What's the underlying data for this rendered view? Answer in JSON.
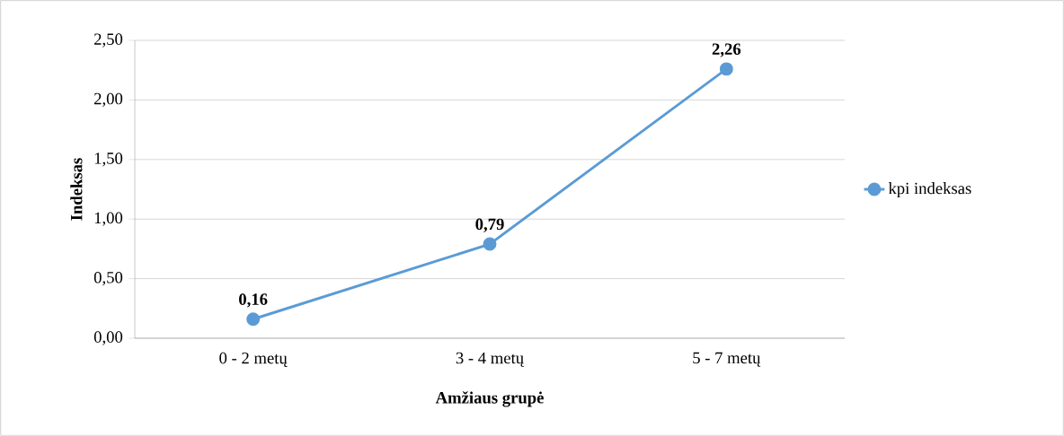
{
  "chart_data": {
    "type": "line",
    "categories": [
      "0 - 2 metų",
      "3 - 4 metų",
      "5 - 7 metų"
    ],
    "series": [
      {
        "name": "kpi indeksas",
        "color": "#5b9bd5",
        "values": [
          0.16,
          0.79,
          2.26
        ],
        "value_labels": [
          "0,16",
          "0,79",
          "2,26"
        ]
      }
    ],
    "xlabel": "Amžiaus grupė",
    "ylabel": "Indeksas",
    "ylim": [
      0,
      2.5
    ],
    "yticks": [
      {
        "value": 0,
        "label": "0,00"
      },
      {
        "value": 0.5,
        "label": "0,50"
      },
      {
        "value": 1,
        "label": "1,00"
      },
      {
        "value": 1.5,
        "label": "1,50"
      },
      {
        "value": 2,
        "label": "2,00"
      },
      {
        "value": 2.5,
        "label": "2,50"
      }
    ],
    "grid": "y",
    "legend": "right",
    "marker": "circle",
    "line_style": "solid"
  }
}
